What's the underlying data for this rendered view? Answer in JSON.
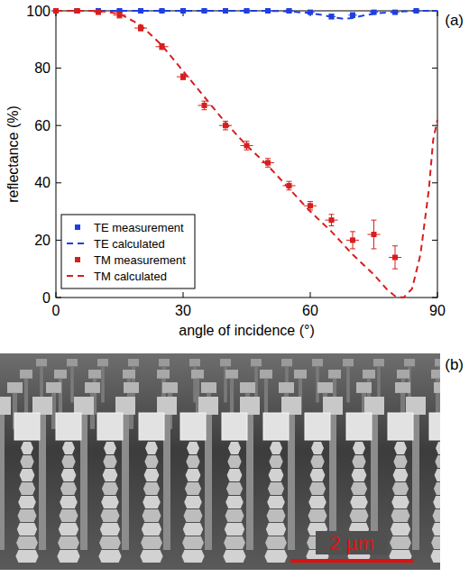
{
  "chart_data": {
    "type": "scatter",
    "annotations": [
      "(a)"
    ],
    "x_label": "angle of incidence (°)",
    "y_label": "reflectance (%)",
    "xlim": [
      0,
      90
    ],
    "xticks": [
      0,
      30,
      60,
      90
    ],
    "ylim": [
      0,
      100
    ],
    "yticks": [
      0,
      20,
      40,
      60,
      80,
      100
    ],
    "grid": false,
    "legend": "lower left",
    "series": [
      {
        "name": "TE measurement",
        "type": "scatter",
        "marker": "square",
        "color": "#1f3fe0",
        "x": [
          0,
          5,
          10,
          15,
          20,
          25,
          30,
          35,
          40,
          45,
          50,
          55,
          60,
          65,
          70,
          75,
          80,
          85
        ],
        "values": [
          100,
          100,
          100,
          100,
          100,
          100,
          100,
          100,
          100,
          100,
          100,
          100,
          99.5,
          98,
          98.5,
          99.5,
          99.5,
          100
        ],
        "errors": [
          0.5,
          0.5,
          0.5,
          0.5,
          0.5,
          0.5,
          0.5,
          0.5,
          0.5,
          0.5,
          0.5,
          0.5,
          0.5,
          0.8,
          0.8,
          0.5,
          0.5,
          0.5
        ],
        "x_errors": [
          1,
          1,
          1,
          1,
          1,
          1,
          1,
          1,
          1,
          1,
          1,
          1,
          1,
          1,
          1,
          1,
          1,
          1
        ]
      },
      {
        "name": "TE calculated",
        "type": "line",
        "line_style": "dashed",
        "color": "#1f3fe0",
        "x": [
          0,
          10,
          20,
          30,
          40,
          50,
          55,
          60,
          63,
          66,
          68,
          70,
          72,
          75,
          80,
          85,
          90
        ],
        "values": [
          100,
          100,
          100,
          100,
          100,
          100,
          99.8,
          99.2,
          98.5,
          97.6,
          97.2,
          97.5,
          98.2,
          99,
          99.7,
          100,
          100
        ]
      },
      {
        "name": "TM measurement",
        "type": "scatter",
        "marker": "square",
        "color": "#d81e1e",
        "x": [
          0,
          5,
          10,
          15,
          20,
          25,
          30,
          35,
          40,
          45,
          50,
          55,
          60,
          65,
          70,
          75,
          80
        ],
        "values": [
          100,
          100,
          99.5,
          98.5,
          94,
          87.5,
          77,
          67,
          60,
          53,
          47,
          39,
          32,
          27,
          20,
          22,
          14
        ],
        "errors": [
          0.5,
          0.5,
          0.5,
          1,
          1,
          1,
          1,
          1.5,
          1.5,
          1.5,
          1.5,
          1.5,
          1.5,
          2,
          3,
          5,
          4
        ],
        "x_errors": [
          1,
          1,
          1,
          1.5,
          1.5,
          1.5,
          1.5,
          1.5,
          1.5,
          1.5,
          1.5,
          1.5,
          1.5,
          1.5,
          1.5,
          1.5,
          1.5
        ]
      },
      {
        "name": "TM calculated",
        "type": "line",
        "line_style": "dashed",
        "color": "#d81e1e",
        "x": [
          0,
          10,
          15,
          20,
          25,
          30,
          35,
          40,
          45,
          50,
          55,
          60,
          65,
          70,
          75,
          78,
          80,
          82,
          84,
          86,
          88,
          89,
          90
        ],
        "values": [
          100,
          100,
          99,
          95,
          88,
          79,
          70,
          61,
          53,
          46,
          38,
          30,
          23,
          15,
          8,
          3,
          0.5,
          0,
          3,
          15,
          38,
          55,
          62
        ]
      }
    ]
  },
  "image_panel": {
    "label": "(b)",
    "scale_bar_label": "2 µm"
  }
}
